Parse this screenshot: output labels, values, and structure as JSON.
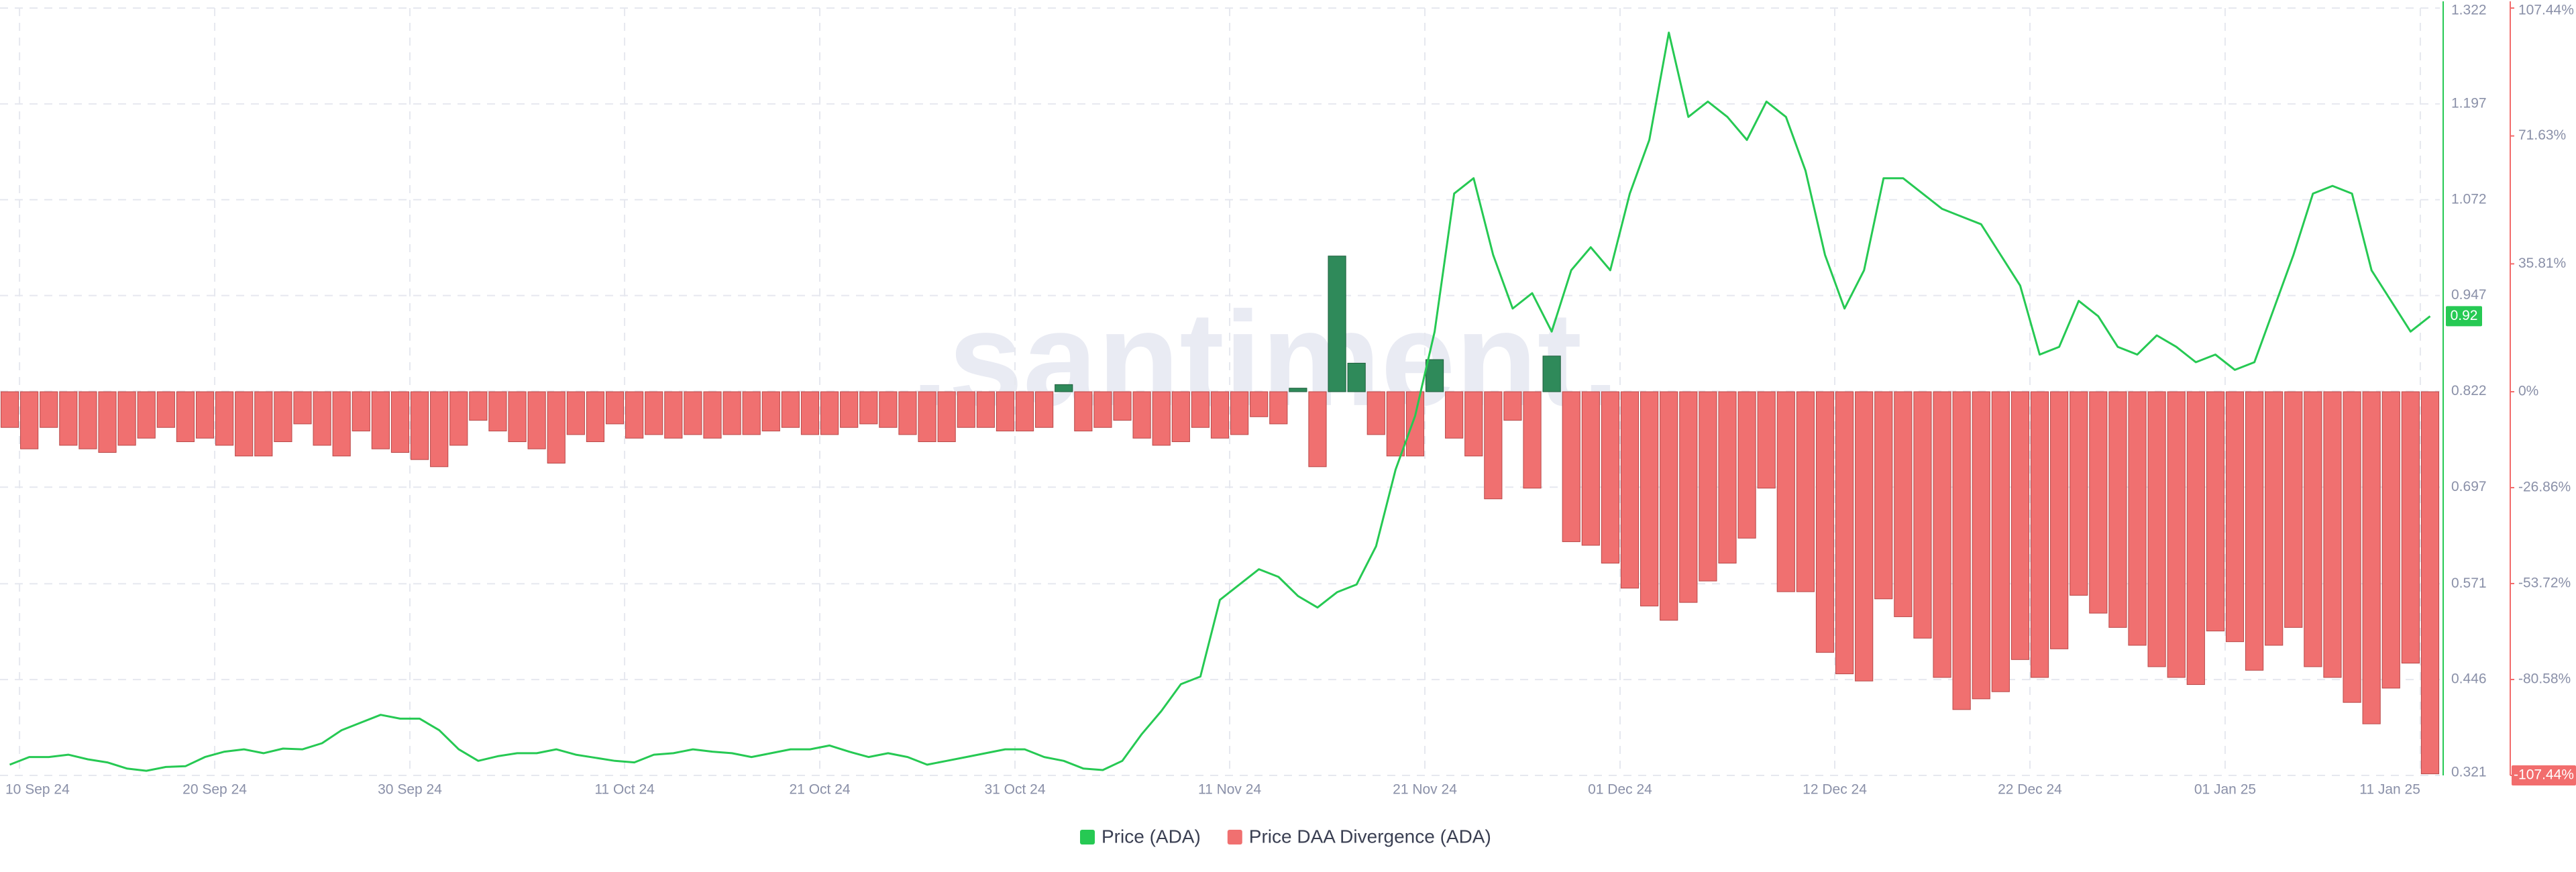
{
  "chart_data": {
    "type": "line",
    "watermark": ".santiment.",
    "x": [
      "2024-09-09",
      "2024-09-10",
      "2024-09-11",
      "2024-09-12",
      "2024-09-13",
      "2024-09-14",
      "2024-09-15",
      "2024-09-16",
      "2024-09-17",
      "2024-09-18",
      "2024-09-19",
      "2024-09-20",
      "2024-09-21",
      "2024-09-22",
      "2024-09-23",
      "2024-09-24",
      "2024-09-25",
      "2024-09-26",
      "2024-09-27",
      "2024-09-28",
      "2024-09-29",
      "2024-09-30",
      "2024-10-01",
      "2024-10-02",
      "2024-10-03",
      "2024-10-04",
      "2024-10-05",
      "2024-10-06",
      "2024-10-07",
      "2024-10-08",
      "2024-10-09",
      "2024-10-10",
      "2024-10-11",
      "2024-10-12",
      "2024-10-13",
      "2024-10-14",
      "2024-10-15",
      "2024-10-16",
      "2024-10-17",
      "2024-10-18",
      "2024-10-19",
      "2024-10-20",
      "2024-10-21",
      "2024-10-22",
      "2024-10-23",
      "2024-10-24",
      "2024-10-25",
      "2024-10-26",
      "2024-10-27",
      "2024-10-28",
      "2024-10-29",
      "2024-10-30",
      "2024-10-31",
      "2024-11-01",
      "2024-11-02",
      "2024-11-03",
      "2024-11-04",
      "2024-11-05",
      "2024-11-06",
      "2024-11-07",
      "2024-11-08",
      "2024-11-09",
      "2024-11-10",
      "2024-11-11",
      "2024-11-12",
      "2024-11-13",
      "2024-11-14",
      "2024-11-15",
      "2024-11-16",
      "2024-11-17",
      "2024-11-18",
      "2024-11-19",
      "2024-11-20",
      "2024-11-21",
      "2024-11-22",
      "2024-11-23",
      "2024-11-24",
      "2024-11-25",
      "2024-11-26",
      "2024-11-27",
      "2024-11-28",
      "2024-11-29",
      "2024-11-30",
      "2024-12-01",
      "2024-12-02",
      "2024-12-03",
      "2024-12-04",
      "2024-12-05",
      "2024-12-06",
      "2024-12-07",
      "2024-12-08",
      "2024-12-09",
      "2024-12-10",
      "2024-12-11",
      "2024-12-12",
      "2024-12-13",
      "2024-12-14",
      "2024-12-15",
      "2024-12-16",
      "2024-12-17",
      "2024-12-18",
      "2024-12-19",
      "2024-12-20",
      "2024-12-21",
      "2024-12-22",
      "2024-12-23",
      "2024-12-24",
      "2024-12-25",
      "2024-12-26",
      "2024-12-27",
      "2024-12-28",
      "2024-12-29",
      "2024-12-30",
      "2024-12-31",
      "2025-01-01",
      "2025-01-02",
      "2025-01-03",
      "2025-01-04",
      "2025-01-05",
      "2025-01-06",
      "2025-01-07",
      "2025-01-08",
      "2025-01-09",
      "2025-01-10",
      "2025-01-11"
    ],
    "xlim": [
      "2024-09-09",
      "2025-01-12"
    ],
    "xticks": [
      {
        "value": "2024-09-10",
        "label": "10 Sep 24"
      },
      {
        "value": "2024-09-20",
        "label": "20 Sep 24"
      },
      {
        "value": "2024-09-30",
        "label": "30 Sep 24"
      },
      {
        "value": "2024-10-11",
        "label": "11 Oct 24"
      },
      {
        "value": "2024-10-21",
        "label": "21 Oct 24"
      },
      {
        "value": "2024-10-31",
        "label": "31 Oct 24"
      },
      {
        "value": "2024-11-11",
        "label": "11 Nov 24"
      },
      {
        "value": "2024-11-21",
        "label": "21 Nov 24"
      },
      {
        "value": "2024-12-01",
        "label": "01 Dec 24"
      },
      {
        "value": "2024-12-12",
        "label": "12 Dec 24"
      },
      {
        "value": "2024-12-22",
        "label": "22 Dec 24"
      },
      {
        "value": "2025-01-01",
        "label": "01 Jan 25"
      },
      {
        "value": "2025-01-11",
        "label": "11 Jan 25"
      }
    ],
    "ylim": [
      0.321,
      1.322
    ],
    "yticks": [
      0.321,
      0.446,
      0.571,
      0.697,
      0.822,
      0.947,
      1.072,
      1.197,
      1.322
    ],
    "y2lim": [
      -107.44,
      107.44
    ],
    "y2ticks": [
      {
        "value": -107.44,
        "label": "-107.44%"
      },
      {
        "value": -80.58,
        "label": "-80.58%"
      },
      {
        "value": -53.72,
        "label": "-53.72%"
      },
      {
        "value": -26.86,
        "label": "-26.86%"
      },
      {
        "value": 0,
        "label": "0%"
      },
      {
        "value": 35.81,
        "label": "35.81%"
      },
      {
        "value": 71.63,
        "label": "71.63%"
      },
      {
        "value": 107.44,
        "label": "107.44%"
      }
    ],
    "grid": true,
    "price_badge": 0.92,
    "series": [
      {
        "name": "Price (ADA)",
        "type": "line",
        "color": "#26c953",
        "axis": "y",
        "values": [
          0.335,
          0.345,
          0.345,
          0.348,
          0.342,
          0.338,
          0.33,
          0.327,
          0.332,
          0.333,
          0.345,
          0.352,
          0.355,
          0.35,
          0.356,
          0.355,
          0.363,
          0.38,
          0.39,
          0.4,
          0.395,
          0.395,
          0.38,
          0.355,
          0.34,
          0.346,
          0.35,
          0.35,
          0.355,
          0.348,
          0.344,
          0.34,
          0.338,
          0.348,
          0.35,
          0.355,
          0.352,
          0.35,
          0.345,
          0.35,
          0.355,
          0.355,
          0.36,
          0.352,
          0.345,
          0.35,
          0.345,
          0.335,
          0.34,
          0.345,
          0.35,
          0.355,
          0.355,
          0.345,
          0.34,
          0.33,
          0.328,
          0.34,
          0.375,
          0.405,
          0.44,
          0.45,
          0.55,
          0.57,
          0.59,
          0.58,
          0.555,
          0.54,
          0.56,
          0.57,
          0.62,
          0.72,
          0.79,
          0.9,
          1.08,
          1.1,
          1.0,
          0.93,
          0.95,
          0.9,
          0.98,
          1.01,
          0.98,
          1.08,
          1.15,
          1.29,
          1.18,
          1.2,
          1.18,
          1.15,
          1.2,
          1.18,
          1.11,
          1.0,
          0.93,
          0.98,
          1.1,
          1.1,
          1.08,
          1.06,
          1.05,
          1.04,
          1.0,
          0.96,
          0.87,
          0.88,
          0.94,
          0.92,
          0.88,
          0.87,
          0.895,
          0.88,
          0.86,
          0.87,
          0.85,
          0.86,
          0.93,
          1.0,
          1.08,
          1.09,
          1.08,
          0.98,
          0.94,
          0.9,
          0.92
        ]
      },
      {
        "name": "Price DAA Divergence (ADA)",
        "type": "bar",
        "color": "#f07070",
        "positive_color": "#2f8a5a",
        "axis": "y2",
        "values": [
          -10,
          -16,
          -10,
          -15,
          -16,
          -17,
          -15,
          -13,
          -10,
          -14,
          -13,
          -15,
          -18,
          -18,
          -14,
          -9,
          -15,
          -18,
          -11,
          -16,
          -17,
          -19,
          -21,
          -15,
          -8,
          -11,
          -14,
          -16,
          -20,
          -12,
          -14,
          -9,
          -13,
          -12,
          -13,
          -12,
          -13,
          -12,
          -12,
          -11,
          -10,
          -12,
          -12,
          -10,
          -9,
          -10,
          -12,
          -14,
          -14,
          -10,
          -10,
          -11,
          -11,
          -10,
          2,
          -11,
          -10,
          -8,
          -13,
          -15,
          -14,
          -10,
          -13,
          -12,
          -7,
          -9,
          1,
          -21,
          38,
          8,
          -12,
          -18,
          -18,
          9,
          -13,
          -18,
          -30,
          -8,
          -27,
          10,
          -42,
          -43,
          -48,
          -55,
          -60,
          -64,
          -59,
          -53,
          -48,
          -41,
          -27,
          -56,
          -56,
          -73,
          -79,
          -81,
          -58,
          -63,
          -69,
          -80,
          -89,
          -86,
          -84,
          -75,
          -80,
          -72,
          -57,
          -62,
          -66,
          -71,
          -77,
          -80,
          -82,
          -67,
          -70,
          -78,
          -71,
          -66,
          -77,
          -80,
          -87,
          -93,
          -83,
          -76,
          -107
        ]
      }
    ]
  }
}
